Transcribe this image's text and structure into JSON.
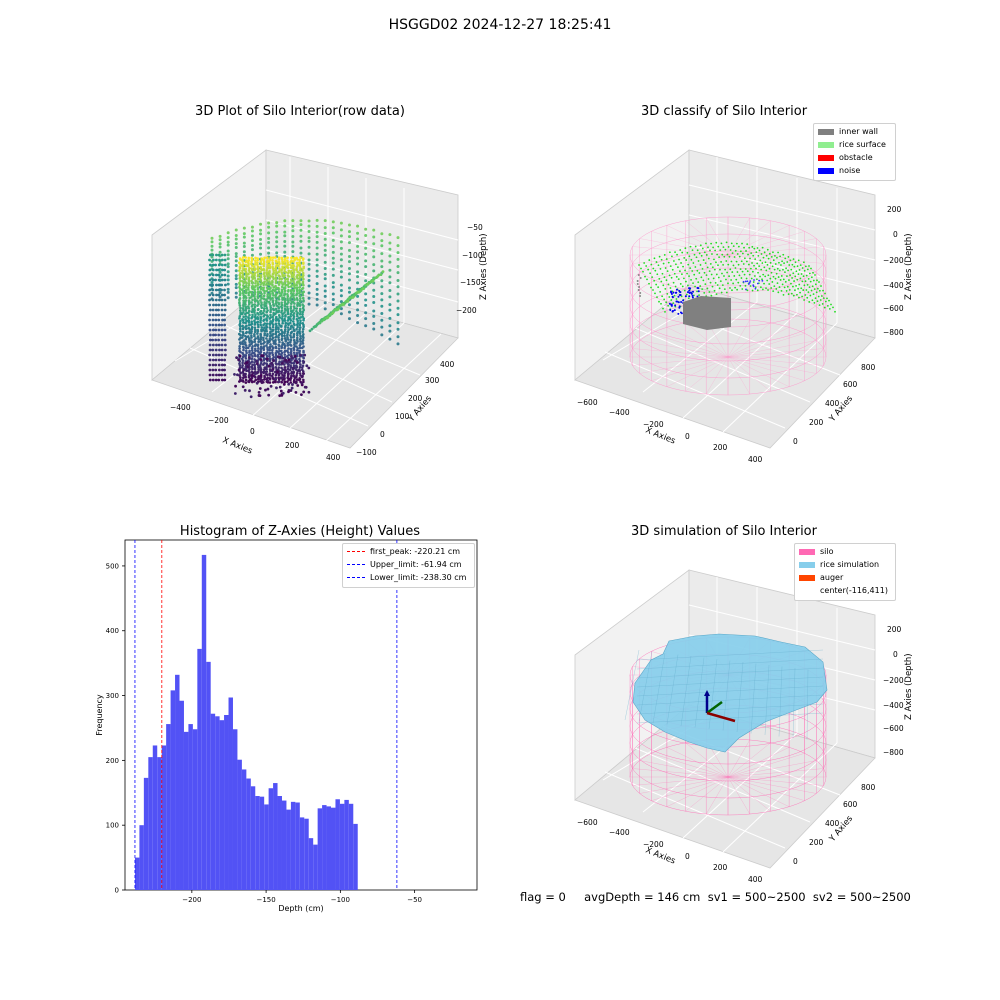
{
  "suptitle": "HSGGD02 2024-12-27 18:25:41",
  "footer": "flag = 0     avgDepth = 146 cm  sv1 = 500~2500  sv2 = 500~2500",
  "panels": {
    "raw": {
      "title": "3D Plot of Silo Interior(row data)",
      "xlabel": "X Axies",
      "ylabel": "Y Axies",
      "zlabel": "Z Axies (Depth)",
      "xticks": [
        "−400",
        "−200",
        "0",
        "200",
        "400"
      ],
      "yticks": [
        "−100",
        "0",
        "100",
        "200",
        "300",
        "400"
      ],
      "zticks": [
        "−50",
        "−100",
        "−150",
        "−200"
      ]
    },
    "classify": {
      "title": "3D classify of Silo Interior",
      "xlabel": "X Axies",
      "ylabel": "Y Axies",
      "zlabel": "Z Axies (Depth)",
      "xticks": [
        "−600",
        "−400",
        "−200",
        "0",
        "200",
        "400"
      ],
      "yticks": [
        "0",
        "200",
        "400",
        "600",
        "800"
      ],
      "zticks": [
        "200",
        "0",
        "−200",
        "−400",
        "−600",
        "−800"
      ],
      "legend": [
        {
          "label": "inner wall",
          "color": "#808080"
        },
        {
          "label": "rice surface",
          "color": "#90ee90"
        },
        {
          "label": "obstacle",
          "color": "#ff0000"
        },
        {
          "label": "noise",
          "color": "#0000ff"
        }
      ]
    },
    "simulation": {
      "title": "3D simulation of Silo Interior",
      "xlabel": "X Axies",
      "ylabel": "Y Axies",
      "zlabel": "Z Axies (Depth)",
      "xticks": [
        "−600",
        "−400",
        "−200",
        "0",
        "200",
        "400"
      ],
      "yticks": [
        "0",
        "200",
        "400",
        "600",
        "800"
      ],
      "zticks": [
        "200",
        "0",
        "−200",
        "−400",
        "−600",
        "−800"
      ],
      "legend": [
        {
          "label": "silo",
          "color": "#ff69b4"
        },
        {
          "label": "rice simulation",
          "color": "#87ceeb"
        },
        {
          "label": "auger",
          "color": "#ff4500"
        },
        {
          "label": "center(-116,411)",
          "color": ""
        }
      ]
    }
  },
  "chart_data": {
    "type": "bar",
    "title": "Histogram of Z-Axies (Height) Values",
    "xlabel": "Depth (cm)",
    "ylabel": "Frequency",
    "xlim": [
      -245,
      -8
    ],
    "ylim": [
      0,
      540
    ],
    "xticks": [
      -200,
      -150,
      -100,
      -50
    ],
    "yticks": [
      0,
      100,
      200,
      300,
      400,
      500
    ],
    "bar_color": "#5252f5",
    "bin_start": -238.3,
    "bin_width": 3.0,
    "values": [
      50,
      100,
      173,
      205,
      223,
      205,
      223,
      256,
      308,
      332,
      292,
      244,
      256,
      248,
      372,
      517,
      352,
      272,
      268,
      262,
      270,
      297,
      248,
      201,
      186,
      172,
      160,
      145,
      144,
      132,
      157,
      165,
      145,
      138,
      124,
      136,
      135,
      112,
      110,
      80,
      70,
      126,
      131,
      129,
      127,
      140,
      133,
      139,
      133,
      102
    ],
    "vlines": [
      {
        "label": "first_peak: -220.21 cm",
        "x": -220.21,
        "color": "#ff0000"
      },
      {
        "label": "Upper_limit: -61.94 cm",
        "x": -61.94,
        "color": "#0000ff"
      },
      {
        "label": "Lower_limit: -238.30 cm",
        "x": -238.3,
        "color": "#0000ff"
      }
    ]
  }
}
